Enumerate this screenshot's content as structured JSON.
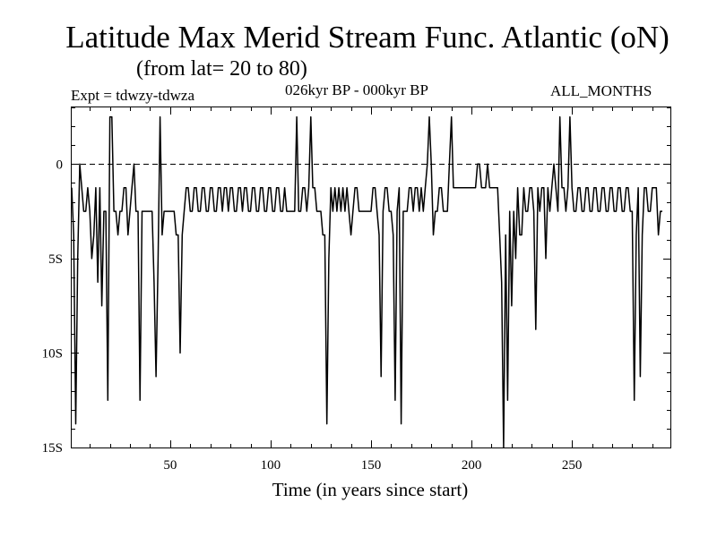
{
  "header": {
    "title": "Latitude Max Merid Stream Func. Atlantic (oN)",
    "subtitle": "(from lat= 20 to 80)",
    "expt": "Expt = tdwzy-tdwza",
    "period": "026kyr BP - 000kyr BP",
    "months": "ALL_MONTHS"
  },
  "chart_data": {
    "type": "line",
    "title": "Latitude Max Merid Stream Func. Atlantic (oN)",
    "xlabel": "Time (in years since start)",
    "ylabel": "",
    "xlim": [
      1,
      299
    ],
    "ylim": [
      -15,
      3
    ],
    "x_ticks": [
      50,
      100,
      150,
      200,
      250
    ],
    "x_tick_labels": [
      "50",
      "100",
      "150",
      "200",
      "250"
    ],
    "y_ticks": [
      0,
      -5,
      -10,
      -15
    ],
    "y_tick_labels": [
      "0",
      "5S",
      "10S",
      "15S"
    ],
    "zero_line": "dashed",
    "series": [
      {
        "name": "tdwzy-tdwza",
        "x_start": 1,
        "x_step": 1,
        "values": [
          -1.25,
          -3.75,
          -13.75,
          -5,
          0,
          -1.25,
          -2.5,
          -2.5,
          -1.25,
          -2.5,
          -5,
          -3.75,
          -1.25,
          -6.25,
          -1.25,
          -7.5,
          -2.5,
          -2.5,
          -12.5,
          2.5,
          2.5,
          -2.5,
          -2.5,
          -3.75,
          -2.5,
          -2.5,
          -1.25,
          -1.25,
          -3.75,
          -2.5,
          -1.25,
          0,
          -2.5,
          -2.5,
          -12.5,
          -2.5,
          -2.5,
          -2.5,
          -2.5,
          -2.5,
          -2.5,
          -6.25,
          -11.25,
          -5,
          2.5,
          -3.75,
          -2.5,
          -2.5,
          -2.5,
          -2.5,
          -2.5,
          -2.5,
          -3.75,
          -3.75,
          -10,
          -3.75,
          -2.5,
          -1.25,
          -1.25,
          -2.5,
          -2.5,
          -1.25,
          -1.25,
          -2.5,
          -2.5,
          -1.25,
          -1.25,
          -2.5,
          -2.5,
          -1.25,
          -1.25,
          -2.5,
          -2.5,
          -1.25,
          -1.25,
          -2.5,
          -1.25,
          -1.25,
          -2.5,
          -1.25,
          -1.25,
          -2.5,
          -2.5,
          -1.25,
          -1.25,
          -2.5,
          -1.25,
          -1.25,
          -2.5,
          -2.5,
          -1.25,
          -1.25,
          -2.5,
          -2.5,
          -1.25,
          -1.25,
          -2.5,
          -2.5,
          -1.25,
          -1.25,
          -2.5,
          -2.5,
          -1.25,
          -1.25,
          -2.5,
          -2.5,
          -1.25,
          -2.5,
          -2.5,
          -2.5,
          -2.5,
          -2.5,
          2.5,
          -2.5,
          -2.5,
          -1.25,
          -1.25,
          -2.5,
          -1.25,
          2.5,
          -1.25,
          -1.25,
          -2.5,
          -2.5,
          -2.5,
          -3.75,
          -3.75,
          -13.75,
          -5,
          -1.25,
          -2.5,
          -1.25,
          -2.5,
          -1.25,
          -2.5,
          -1.25,
          -2.5,
          -1.25,
          -2.5,
          -3.75,
          -2.5,
          -1.25,
          -1.25,
          -2.5,
          -2.5,
          -2.5,
          -2.5,
          -2.5,
          -2.5,
          -2.5,
          -1.25,
          -1.25,
          -2.5,
          -3.75,
          -11.25,
          -2.5,
          -1.25,
          -1.25,
          -2.5,
          -2.5,
          -3.75,
          -12.5,
          -2.5,
          -1.25,
          -13.75,
          -2.5,
          -2.5,
          -2.5,
          -1.25,
          -1.25,
          -2.5,
          -1.25,
          -1.25,
          -2.5,
          -1.25,
          -2.5,
          -1.25,
          0,
          2.5,
          0,
          -3.75,
          -2.5,
          -2.5,
          -1.25,
          -1.25,
          -2.5,
          -2.5,
          -2.5,
          0,
          2.5,
          -1.25,
          -1.25,
          -1.25,
          -1.25,
          -1.25,
          -1.25,
          -1.25,
          -1.25,
          -1.25,
          -1.25,
          -1.25,
          -1.25,
          0,
          0,
          -1.25,
          -1.25,
          -1.25,
          0,
          -1.25,
          -1.25,
          -1.25,
          -1.25,
          -1.25,
          -3.75,
          -6.25,
          -15,
          -3.75,
          -12.5,
          -2.5,
          -7.5,
          -2.5,
          -5,
          -1.25,
          -3.75,
          -3.75,
          -1.25,
          -2.5,
          -2.5,
          -1.25,
          -1.25,
          -2.5,
          -8.75,
          -1.25,
          -2.5,
          -1.25,
          -1.25,
          -5,
          -1.25,
          -2.5,
          -1.25,
          0,
          -1.25,
          -2.5,
          2.5,
          -1.25,
          -1.25,
          -2.5,
          -1.25,
          2.5,
          -1.25,
          -2.5,
          -2.5,
          -1.25,
          -1.25,
          -2.5,
          -2.5,
          -1.25,
          -1.25,
          -2.5,
          -2.5,
          -1.25,
          -1.25,
          -2.5,
          -2.5,
          -1.25,
          -1.25,
          -2.5,
          -2.5,
          -1.25,
          -1.25,
          -2.5,
          -2.5,
          -1.25,
          -1.25,
          -2.5,
          -2.5,
          -1.25,
          -1.25,
          -2.5,
          -2.5,
          -12.5,
          -3.75,
          -1.25,
          -11.25,
          -3.75,
          -1.25,
          -1.25,
          -2.5,
          -2.5,
          -1.25,
          -1.25,
          -1.25,
          -3.75,
          -2.5,
          -2.5
        ]
      }
    ]
  }
}
